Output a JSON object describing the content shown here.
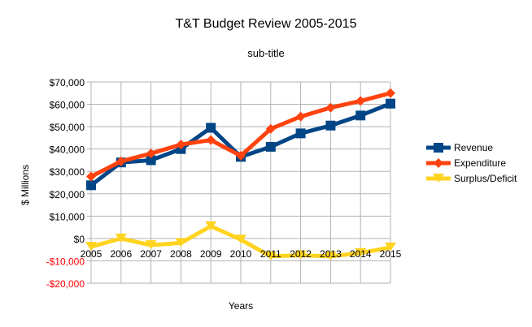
{
  "chart_data": {
    "type": "line",
    "title": "T&T Budget Review 2005-2015",
    "subtitle": "sub-title",
    "xlabel": "Years",
    "ylabel": "$ Millions",
    "ylim": [
      -20000,
      70000
    ],
    "yticks": [
      70000,
      60000,
      50000,
      40000,
      30000,
      20000,
      10000,
      0,
      -10000,
      -20000
    ],
    "ytick_labels": [
      "$70,000",
      "$60,000",
      "$50,000",
      "$40,000",
      "$30,000",
      "$20,000",
      "$10,000",
      "$0",
      "-$10,000",
      "-$20,000"
    ],
    "negative_label_color": "#ff0000",
    "grid": true,
    "legend": "right",
    "categories": [
      "2005",
      "2006",
      "2007",
      "2008",
      "2009",
      "2010",
      "2011",
      "2012",
      "2013",
      "2014",
      "2015"
    ],
    "series": [
      {
        "name": "Revenue",
        "color": "#004586",
        "marker": "square",
        "values": [
          23800,
          34000,
          35000,
          40000,
          49500,
          36500,
          41000,
          47000,
          50500,
          55000,
          60300
        ]
      },
      {
        "name": "Expenditure",
        "color": "#ff420e",
        "marker": "diamond",
        "values": [
          27700,
          34500,
          38000,
          42000,
          44000,
          37000,
          49000,
          54500,
          58500,
          61500,
          65000
        ]
      },
      {
        "name": "Surplus/Deficit",
        "color": "#ffd320",
        "marker": "triangle-down",
        "values": [
          -3700,
          0,
          -3000,
          -2000,
          5500,
          -500,
          -8000,
          -7500,
          -8000,
          -6500,
          -4000
        ]
      }
    ]
  }
}
